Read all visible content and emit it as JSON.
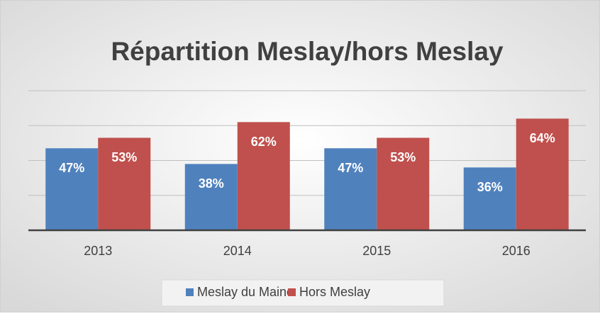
{
  "chart_data": {
    "type": "bar",
    "title": "Répartition Meslay/hors Meslay",
    "categories": [
      "2013",
      "2014",
      "2015",
      "2016"
    ],
    "series": [
      {
        "name": "Meslay du Maine",
        "color": "#4f81bd",
        "values": [
          47,
          38,
          47,
          36
        ],
        "value_labels": [
          "47%",
          "38%",
          "47%",
          "36%"
        ]
      },
      {
        "name": "Hors Meslay",
        "color": "#c0504d",
        "values": [
          53,
          62,
          53,
          64
        ],
        "value_labels": [
          "53%",
          "62%",
          "53%",
          "64%"
        ]
      }
    ],
    "ylim": [
      0,
      80
    ],
    "yticks": [
      0,
      20,
      40,
      60,
      80
    ],
    "grid": true,
    "legend": "bottom"
  }
}
